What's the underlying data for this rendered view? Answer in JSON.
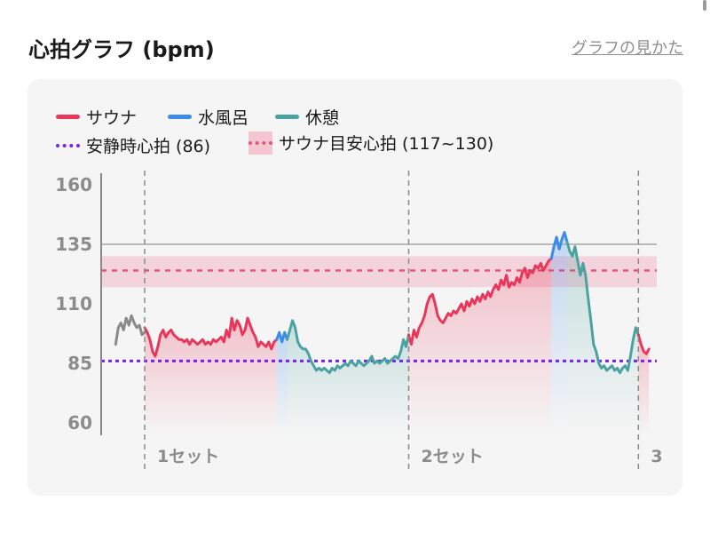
{
  "header": {
    "title": "心拍グラフ (bpm)",
    "help_link": "グラフの見かた"
  },
  "colors": {
    "sauna": "#e8375a",
    "water_bath": "#3b8bea",
    "rest": "#4aa3a1",
    "pre": "#8a8a8a",
    "resting_hr": "#7a22e0",
    "target_band": "#f4c6d1",
    "target_line": "#e8557a",
    "axis": "#888888",
    "tick_label": "#8c8c8c"
  },
  "chart_data": {
    "type": "line",
    "title": "",
    "xlabel": "",
    "ylabel": "",
    "ylim": [
      60,
      160
    ],
    "yticks": [
      60,
      85,
      110,
      135,
      160
    ],
    "grid": false,
    "legend_position": "top-left",
    "legend": [
      {
        "key": "sauna",
        "label": "サウナ"
      },
      {
        "key": "water_bath",
        "label": "水風呂"
      },
      {
        "key": "rest",
        "label": "休憩"
      },
      {
        "key": "resting_hr",
        "label": "安静時心拍 (86)"
      },
      {
        "key": "target_band",
        "label": "サウナ目安心拍 (117~130)"
      }
    ],
    "reference_lines": [
      {
        "key": "resting_hr",
        "value": 86,
        "style": "dotted"
      },
      {
        "key": "max_line",
        "value": 135,
        "style": "solid"
      }
    ],
    "target_band": {
      "low": 117,
      "high": 130,
      "line": 124
    },
    "set_markers": [
      {
        "x": 0,
        "label": "1セット"
      },
      {
        "x": 100,
        "label": "2セット"
      },
      {
        "x": 187,
        "label": "3"
      }
    ],
    "series": [
      {
        "key": "pre",
        "x": [
          -11,
          -10,
          -9,
          -8,
          -7,
          -6,
          -5,
          -4,
          -3,
          -2,
          -1,
          0
        ],
        "values": [
          93,
          100,
          102,
          99,
          104,
          101,
          105,
          102,
          100,
          101,
          97,
          98
        ]
      },
      {
        "key": "sauna",
        "x": [
          0,
          1,
          2,
          3,
          4,
          5,
          6,
          7,
          8,
          9,
          10,
          11,
          12,
          13,
          14,
          15,
          16,
          17,
          18,
          19,
          20,
          21,
          22,
          23,
          24,
          25,
          26,
          27,
          28,
          29,
          30,
          31,
          32,
          33,
          34,
          35,
          36,
          37,
          38,
          39,
          40,
          41,
          42,
          43,
          44,
          45,
          46,
          47,
          48,
          49,
          50
        ],
        "values": [
          100,
          98,
          95,
          90,
          88,
          92,
          97,
          99,
          96,
          98,
          99,
          97,
          96,
          95,
          95,
          94,
          95,
          93,
          95,
          94,
          93,
          94,
          95,
          93,
          94,
          93,
          95,
          94,
          95,
          96,
          94,
          99,
          96,
          104,
          99,
          103,
          101,
          97,
          99,
          104,
          101,
          98,
          96,
          92,
          94,
          93,
          92,
          94,
          91,
          94,
          95
        ]
      },
      {
        "key": "water_bath",
        "x": [
          50,
          51,
          52,
          53,
          54
        ],
        "values": [
          95,
          98,
          94,
          98,
          95
        ]
      },
      {
        "key": "rest",
        "x": [
          54,
          55,
          56,
          57,
          58,
          59,
          60,
          61,
          62,
          63,
          64,
          65,
          66,
          67,
          68,
          69,
          70,
          71,
          72,
          73,
          74,
          75,
          76,
          77,
          78,
          79,
          80,
          81,
          82,
          83,
          84,
          85,
          86,
          87,
          88,
          89,
          90,
          91,
          92,
          93,
          94,
          95,
          96,
          97,
          98,
          99,
          100
        ],
        "values": [
          95,
          99,
          103,
          100,
          94,
          92,
          91,
          91,
          89,
          86,
          84,
          82,
          83,
          82,
          83,
          82,
          81,
          83,
          82,
          84,
          83,
          84,
          85,
          84,
          86,
          85,
          84,
          86,
          85,
          84,
          85,
          86,
          88,
          85,
          86,
          85,
          86,
          87,
          85,
          86,
          87,
          88,
          87,
          90,
          95,
          92,
          97
        ]
      },
      {
        "key": "sauna",
        "x": [
          100,
          101,
          102,
          103,
          104,
          105,
          106,
          107,
          108,
          109,
          110,
          111,
          112,
          113,
          114,
          115,
          116,
          117,
          118,
          119,
          120,
          121,
          122,
          123,
          124,
          125,
          126,
          127,
          128,
          129,
          130,
          131,
          132,
          133,
          134,
          135,
          136,
          137,
          138,
          139,
          140,
          141,
          142,
          143,
          144,
          145,
          146,
          147,
          148,
          149,
          150,
          151,
          152,
          153,
          154
        ],
        "values": [
          97,
          93,
          99,
          96,
          100,
          102,
          105,
          110,
          113,
          114,
          110,
          105,
          103,
          102,
          104,
          106,
          105,
          107,
          106,
          108,
          110,
          107,
          111,
          109,
          112,
          110,
          113,
          111,
          114,
          112,
          115,
          113,
          116,
          118,
          116,
          120,
          118,
          122,
          117,
          119,
          118,
          121,
          119,
          123,
          125,
          121,
          124,
          123,
          126,
          125,
          127,
          124,
          126,
          128,
          129
        ]
      },
      {
        "key": "water_bath",
        "x": [
          154,
          155,
          156,
          157,
          158,
          159,
          160
        ],
        "values": [
          129,
          134,
          138,
          133,
          137,
          140,
          136
        ]
      },
      {
        "key": "rest",
        "x": [
          160,
          161,
          162,
          163,
          164,
          165,
          166,
          167,
          168,
          169,
          170,
          171,
          172,
          173,
          174,
          175,
          176,
          177,
          178,
          179,
          180,
          181,
          182,
          183,
          184,
          185,
          186,
          187
        ],
        "values": [
          136,
          132,
          130,
          134,
          128,
          122,
          127,
          122,
          112,
          103,
          93,
          90,
          85,
          83,
          84,
          82,
          83,
          84,
          82,
          83,
          81,
          83,
          84,
          82,
          88,
          95,
          100,
          97
        ]
      },
      {
        "key": "sauna",
        "x": [
          187,
          188,
          189,
          190,
          191
        ],
        "values": [
          97,
          93,
          90,
          89,
          91
        ]
      }
    ]
  }
}
